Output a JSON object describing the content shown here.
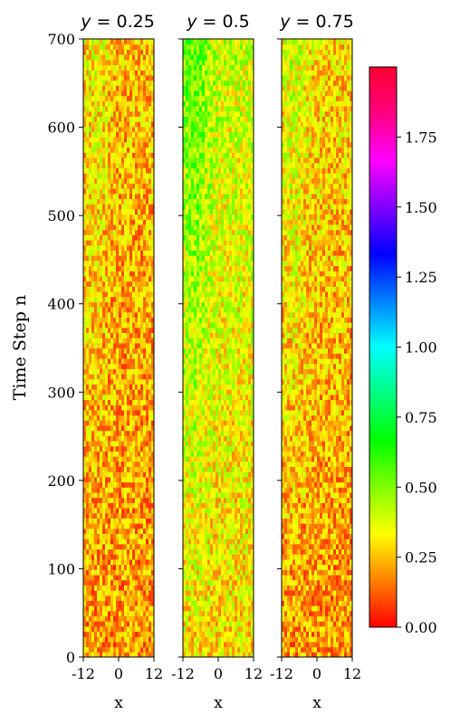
{
  "chart_data": {
    "type": "heatmap",
    "ylabel": "Time Step n",
    "xlabel": "x",
    "ylim": [
      0,
      700
    ],
    "yticks": [
      0,
      100,
      200,
      300,
      400,
      500,
      600,
      700
    ],
    "xlim": [
      -12,
      12
    ],
    "xticks": [
      -12,
      0,
      12
    ],
    "panels": [
      {
        "title_prefix": "y",
        "title_value": "= 0.25",
        "mean_value_low_n": 0.2,
        "mean_value_high_n": 0.25
      },
      {
        "title_prefix": "y",
        "title_value": "= 0.5",
        "mean_value_low_n": 0.3,
        "mean_value_high_n": 0.4
      },
      {
        "title_prefix": "y",
        "title_value": "= 0.75",
        "mean_value_low_n": 0.2,
        "mean_value_high_n": 0.3
      }
    ],
    "colorbar": {
      "colormap": "gist_rainbow",
      "range": [
        0,
        2
      ],
      "ticks": [
        0.0,
        0.25,
        0.5,
        0.75,
        1.0,
        1.25,
        1.5,
        1.75
      ],
      "tick_labels": [
        "0.00",
        "0.25",
        "0.50",
        "0.75",
        "1.00",
        "1.25",
        "1.50",
        "1.75"
      ],
      "stops": [
        "#ff0000",
        "#ff8000",
        "#ffff00",
        "#80ff00",
        "#00ff00",
        "#00ff80",
        "#00ffff",
        "#0080ff",
        "#0000ff",
        "#8000ff",
        "#ff00ff",
        "#ff0080",
        "#ff0030"
      ]
    }
  }
}
